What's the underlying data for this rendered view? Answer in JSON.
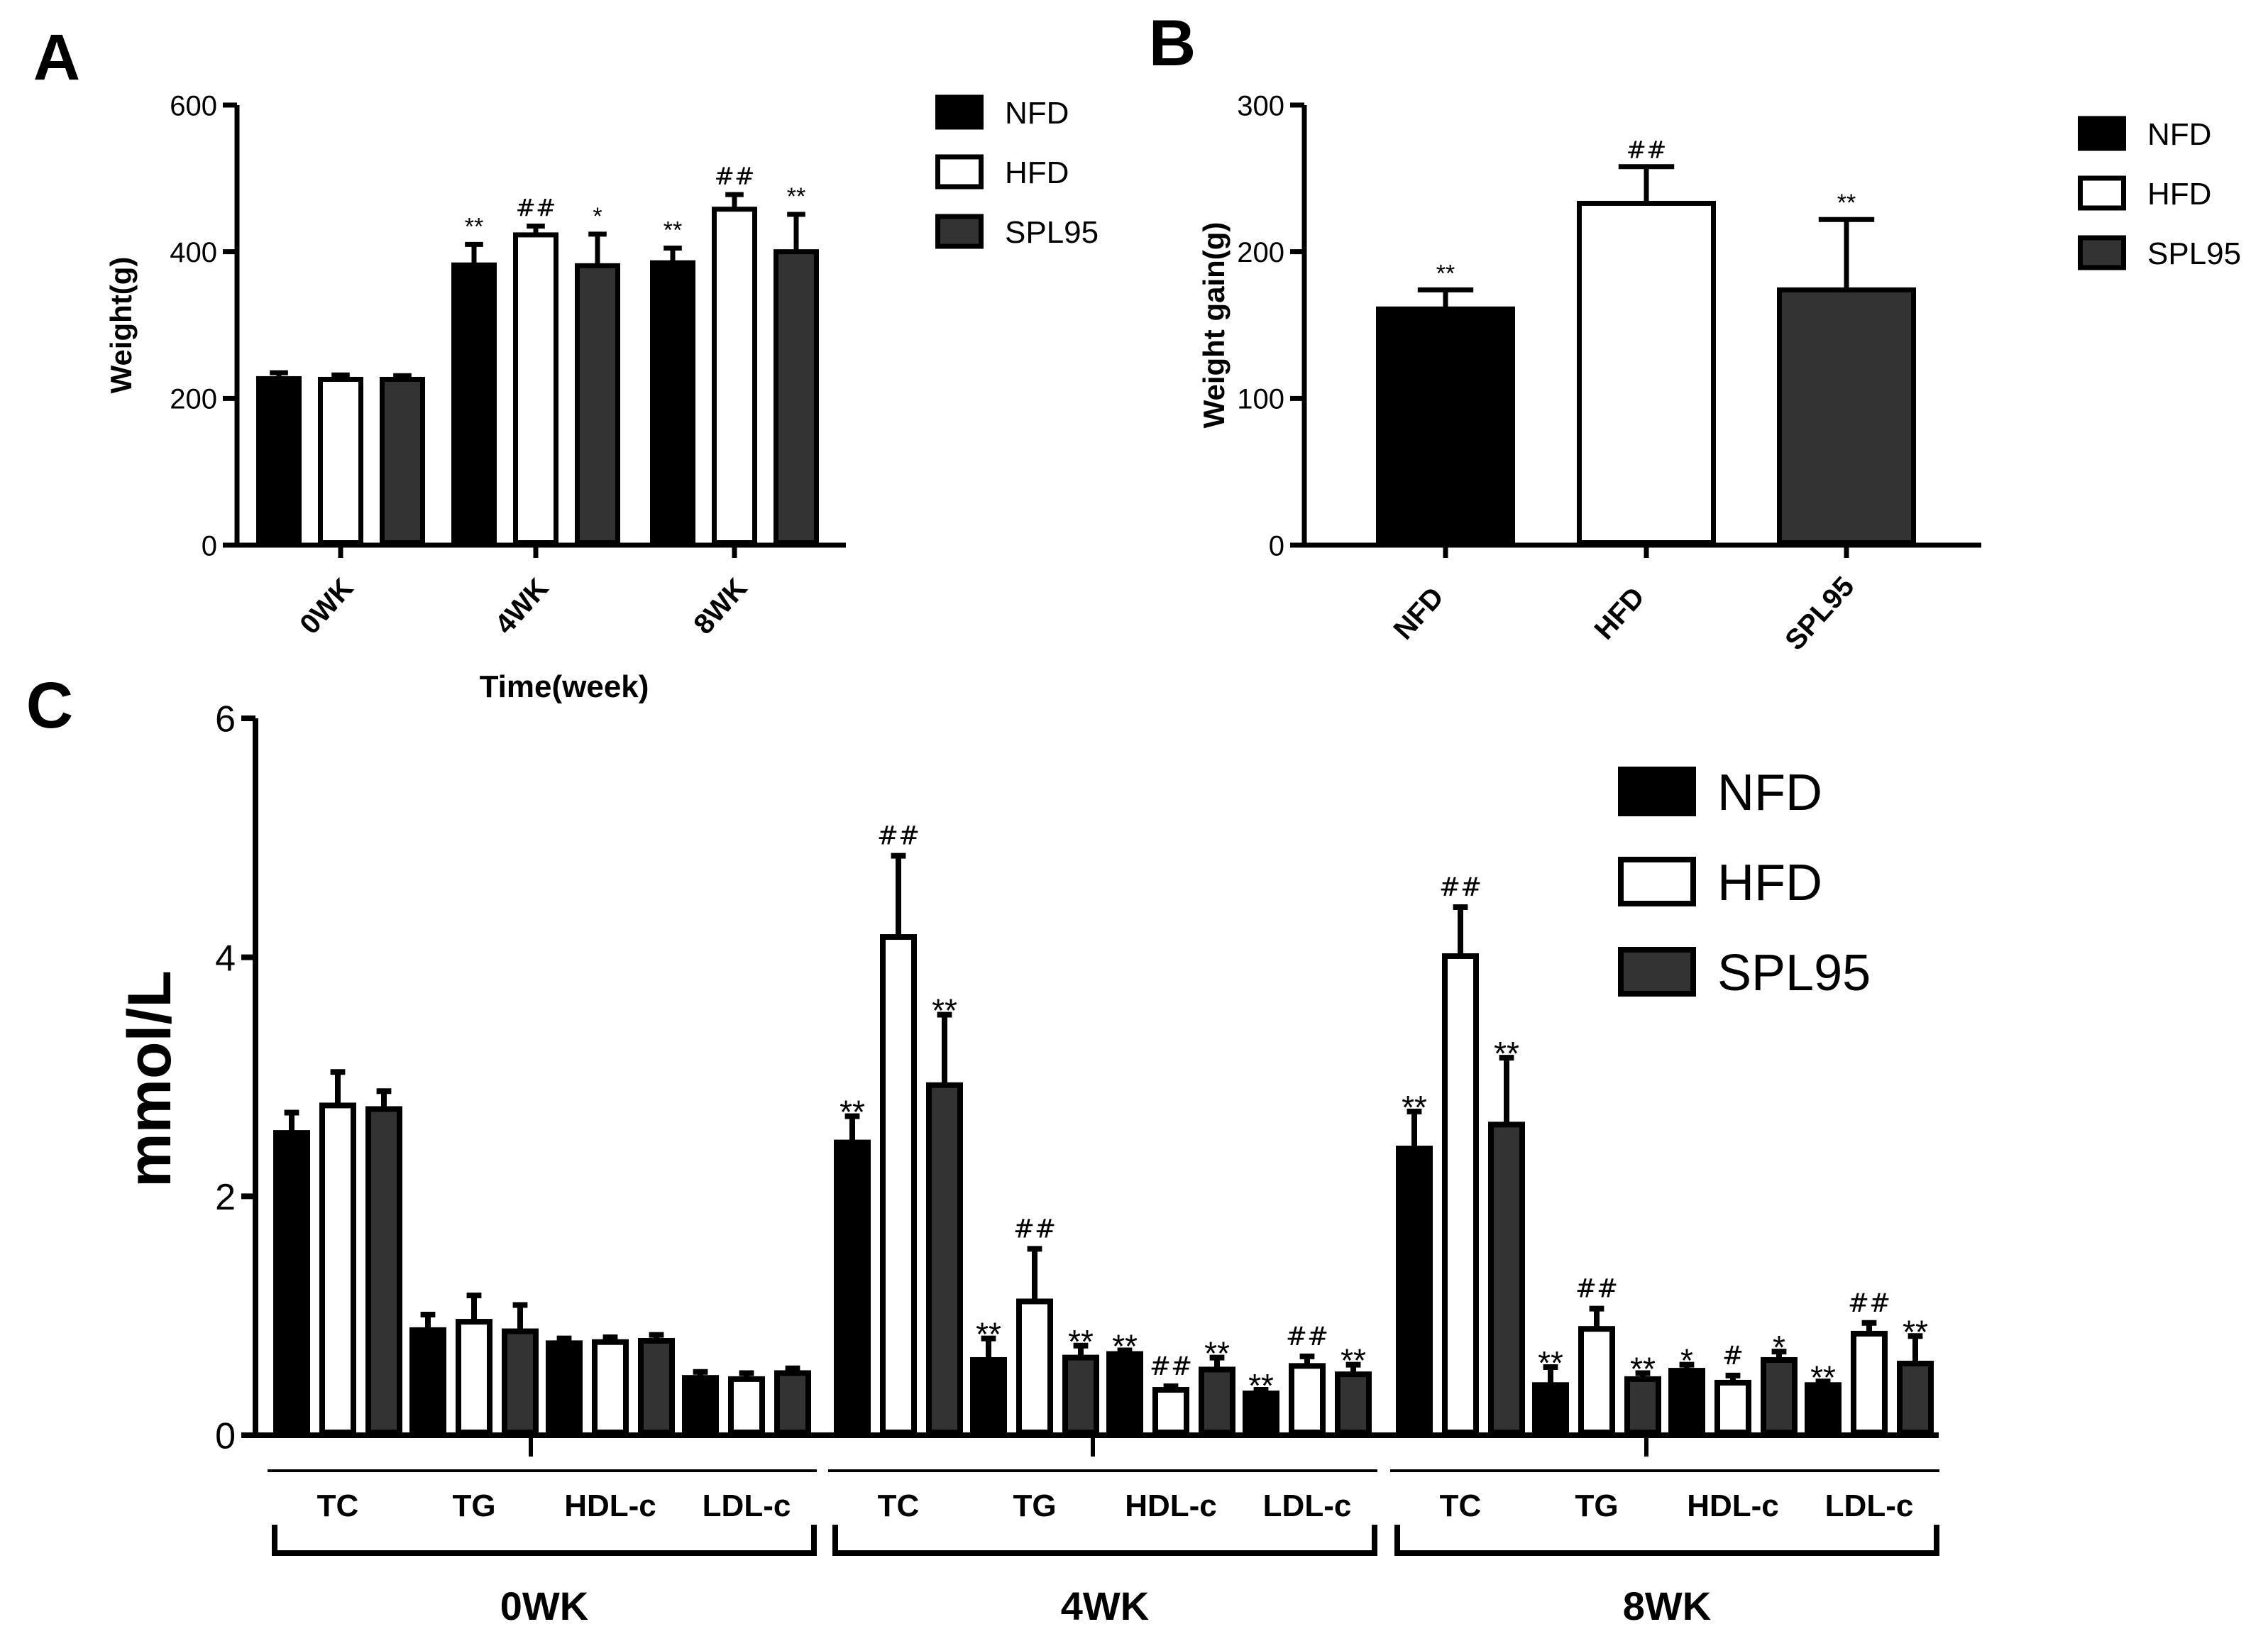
{
  "panels": [
    {
      "id": "A",
      "letter": "A",
      "type": "bar",
      "ylabel": "Weight(g)",
      "xlabel": "Time(week)",
      "ylim": [
        0,
        600
      ],
      "yticks": [
        0,
        200,
        400,
        600
      ],
      "categories": [
        "0WK",
        "4WK",
        "8WK"
      ],
      "legend": [
        "NFD",
        "HFD",
        "SPL95"
      ],
      "series": [
        {
          "name": "NFD",
          "values": [
            227,
            382,
            385
          ],
          "errors": [
            8,
            28,
            20
          ],
          "marks": [
            "",
            "**",
            "**"
          ]
        },
        {
          "name": "HFD",
          "values": [
            226,
            423,
            458
          ],
          "errors": [
            6,
            12,
            20
          ],
          "marks": [
            "",
            "##",
            "##"
          ]
        },
        {
          "name": "SPL95",
          "values": [
            226,
            381,
            400
          ],
          "errors": [
            5,
            43,
            51
          ],
          "marks": [
            "",
            "*",
            "**"
          ]
        }
      ]
    },
    {
      "id": "B",
      "letter": "B",
      "type": "bar",
      "ylabel": "Weight gain(g)",
      "xlabel": "",
      "ylim": [
        0,
        300
      ],
      "yticks": [
        0,
        100,
        200,
        300
      ],
      "categories": [
        "NFD",
        "HFD",
        "SPL95"
      ],
      "legend": [
        "NFD",
        "HFD",
        "SPL95"
      ],
      "series": [
        {
          "name": "Weight gain",
          "values": [
            161,
            233,
            174
          ],
          "errors": [
            13,
            25,
            48
          ],
          "marks": [
            "**",
            "##",
            "**"
          ]
        }
      ]
    },
    {
      "id": "C",
      "letter": "C",
      "type": "bar",
      "ylabel": "mmol/L",
      "ylim": [
        0,
        6
      ],
      "yticks": [
        0,
        2,
        4,
        6
      ],
      "legend": [
        "NFD",
        "HFD",
        "SPL95"
      ],
      "periods": [
        {
          "label": "0WK",
          "groups": [
            {
              "label": "TC",
              "values": [
                2.53,
                2.76,
                2.73
              ],
              "errors": [
                0.17,
                0.28,
                0.15
              ],
              "marks": [
                "",
                "",
                ""
              ]
            },
            {
              "label": "TG",
              "values": [
                0.88,
                0.95,
                0.87
              ],
              "errors": [
                0.13,
                0.22,
                0.22
              ],
              "marks": [
                "",
                "",
                ""
              ]
            },
            {
              "label": "HDL-c",
              "values": [
                0.77,
                0.78,
                0.79
              ],
              "errors": [
                0.04,
                0.04,
                0.05
              ],
              "marks": [
                "",
                "",
                ""
              ]
            },
            {
              "label": "LDL-c",
              "values": [
                0.48,
                0.47,
                0.52
              ],
              "errors": [
                0.05,
                0.05,
                0.04
              ],
              "marks": [
                "",
                "",
                ""
              ]
            }
          ]
        },
        {
          "label": "4WK",
          "groups": [
            {
              "label": "TC",
              "values": [
                2.45,
                4.17,
                2.93
              ],
              "errors": [
                0.22,
                0.68,
                0.59
              ],
              "marks": [
                "**",
                "##",
                "**"
              ]
            },
            {
              "label": "TG",
              "values": [
                0.63,
                1.12,
                0.65
              ],
              "errors": [
                0.18,
                0.44,
                0.1
              ],
              "marks": [
                "**",
                "##",
                "**"
              ]
            },
            {
              "label": "HDL-c",
              "values": [
                0.68,
                0.38,
                0.55
              ],
              "errors": [
                0.03,
                0.03,
                0.1
              ],
              "marks": [
                "**",
                "##",
                "**"
              ]
            },
            {
              "label": "LDL-c",
              "values": [
                0.35,
                0.58,
                0.51
              ],
              "errors": [
                0.03,
                0.08,
                0.08
              ],
              "marks": [
                "**",
                "##",
                "**"
              ]
            }
          ]
        },
        {
          "label": "8WK",
          "groups": [
            {
              "label": "TC",
              "values": [
                2.4,
                4.01,
                2.6
              ],
              "errors": [
                0.31,
                0.41,
                0.56
              ],
              "marks": [
                "**",
                "##",
                "**"
              ]
            },
            {
              "label": "TG",
              "values": [
                0.42,
                0.89,
                0.47
              ],
              "errors": [
                0.15,
                0.17,
                0.05
              ],
              "marks": [
                "**",
                "##",
                "**"
              ]
            },
            {
              "label": "HDL-c",
              "values": [
                0.54,
                0.44,
                0.63
              ],
              "errors": [
                0.05,
                0.06,
                0.07
              ],
              "marks": [
                "*",
                "#",
                "*"
              ]
            },
            {
              "label": "LDL-c",
              "values": [
                0.42,
                0.85,
                0.6
              ],
              "errors": [
                0.03,
                0.09,
                0.23
              ],
              "marks": [
                "**",
                "##",
                "**"
              ]
            }
          ]
        }
      ]
    }
  ],
  "series_colors": {
    "NFD": "#000000",
    "HFD": "#ffffff",
    "SPL95": "#333333"
  },
  "series_stroke": "#000000",
  "chart_data": [
    {
      "type": "bar",
      "title": "A",
      "xlabel": "Time(week)",
      "ylabel": "Weight(g)",
      "ylim": [
        0,
        600
      ],
      "categories": [
        "0WK",
        "4WK",
        "8WK"
      ],
      "series": [
        {
          "name": "NFD",
          "values": [
            227,
            382,
            385
          ]
        },
        {
          "name": "HFD",
          "values": [
            226,
            423,
            458
          ]
        },
        {
          "name": "SPL95",
          "values": [
            226,
            381,
            400
          ]
        }
      ]
    },
    {
      "type": "bar",
      "title": "B",
      "ylabel": "Weight gain(g)",
      "ylim": [
        0,
        300
      ],
      "categories": [
        "NFD",
        "HFD",
        "SPL95"
      ],
      "values": [
        161,
        233,
        174
      ]
    },
    {
      "type": "bar",
      "title": "C",
      "ylabel": "mmol/L",
      "ylim": [
        0,
        6
      ],
      "categories": [
        "0WK TC",
        "0WK TG",
        "0WK HDL-c",
        "0WK LDL-c",
        "4WK TC",
        "4WK TG",
        "4WK HDL-c",
        "4WK LDL-c",
        "8WK TC",
        "8WK TG",
        "8WK HDL-c",
        "8WK LDL-c"
      ],
      "series": [
        {
          "name": "NFD",
          "values": [
            2.53,
            0.88,
            0.77,
            0.48,
            2.45,
            0.63,
            0.68,
            0.35,
            2.4,
            0.42,
            0.54,
            0.42
          ]
        },
        {
          "name": "HFD",
          "values": [
            2.76,
            0.95,
            0.78,
            0.47,
            4.17,
            1.12,
            0.38,
            0.58,
            4.01,
            0.89,
            0.44,
            0.85
          ]
        },
        {
          "name": "SPL95",
          "values": [
            2.73,
            0.87,
            0.79,
            0.52,
            2.93,
            0.65,
            0.55,
            0.51,
            2.6,
            0.47,
            0.63,
            0.6
          ]
        }
      ]
    }
  ]
}
